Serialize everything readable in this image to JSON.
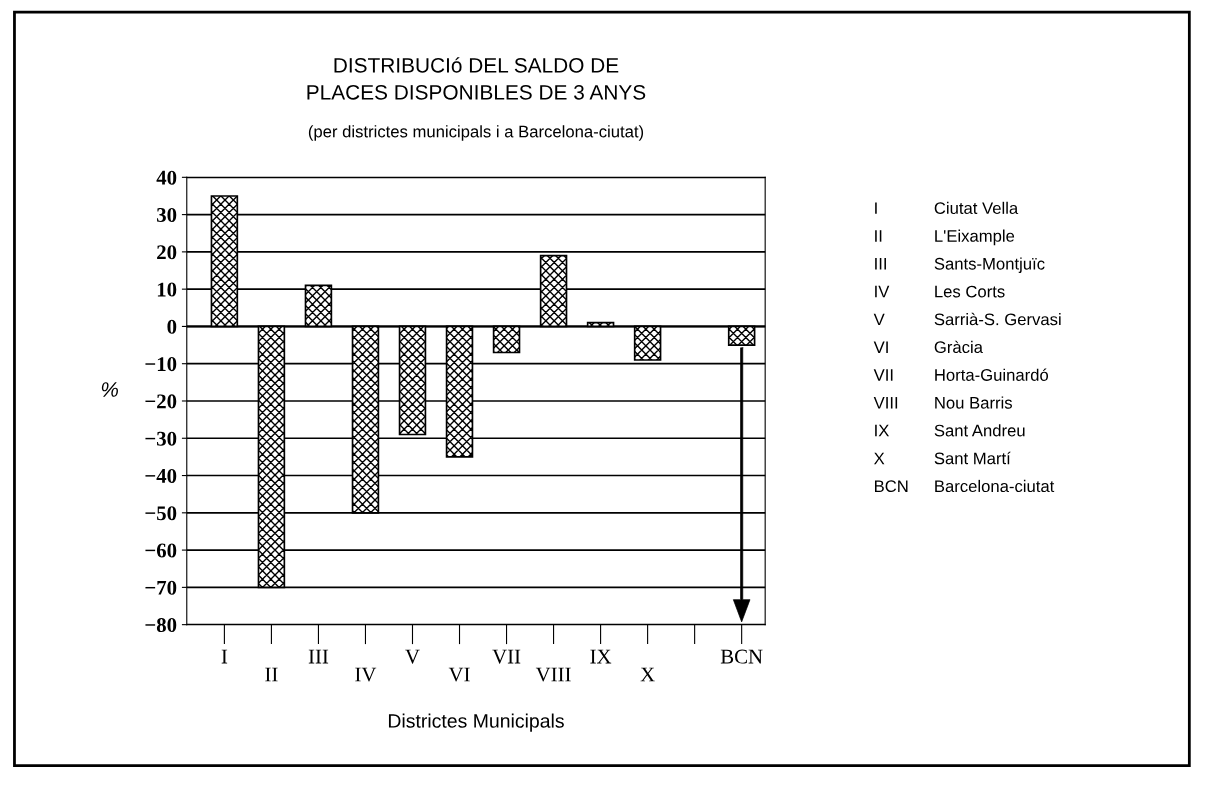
{
  "chart_data": {
    "type": "bar",
    "title": "DISTRIBUCIó DEL SALDO DE\nPLACES DISPONIBLES DE 3 ANYS",
    "subtitle": "(per districtes municipals i a Barcelona-ciutat)",
    "xlabel": "Districtes Municipals",
    "ylabel": "%",
    "categories": [
      "I",
      "II",
      "III",
      "IV",
      "V",
      "VI",
      "VII",
      "VIII",
      "IX",
      "X",
      null,
      "BCN"
    ],
    "values": [
      35,
      -70,
      11,
      -50,
      -29,
      -35,
      -7,
      19,
      1,
      -9,
      null,
      -5
    ],
    "color": "#000000",
    "ylim": [
      -80,
      40
    ],
    "yticks": [
      {
        "value": 40,
        "label": "40"
      },
      {
        "value": 30,
        "label": "30"
      },
      {
        "value": 20,
        "label": "20"
      },
      {
        "value": 10,
        "label": "10"
      },
      {
        "value": 0,
        "label": "0"
      },
      {
        "value": -10,
        "label": "−10"
      },
      {
        "value": -20,
        "label": "−20"
      },
      {
        "value": -30,
        "label": "−30"
      },
      {
        "value": -40,
        "label": "−40"
      },
      {
        "value": -50,
        "label": "−50"
      },
      {
        "value": -60,
        "label": "−60"
      },
      {
        "value": -70,
        "label": "−70"
      },
      {
        "value": -80,
        "label": "−80"
      }
    ],
    "grid": "y",
    "annotations": [
      "I Ciutat Vella",
      "II L'Eixample",
      "III Sants-Montjuïc",
      "IV Les Corts",
      "V Sarrià-S. Gervasi",
      "VI Gràcia",
      "VII Horta-Guinardó",
      "VIII Nou Barris",
      "IX Sant Andreu",
      "X Sant Martí",
      "BCN Barcelona-ciutat"
    ]
  }
}
